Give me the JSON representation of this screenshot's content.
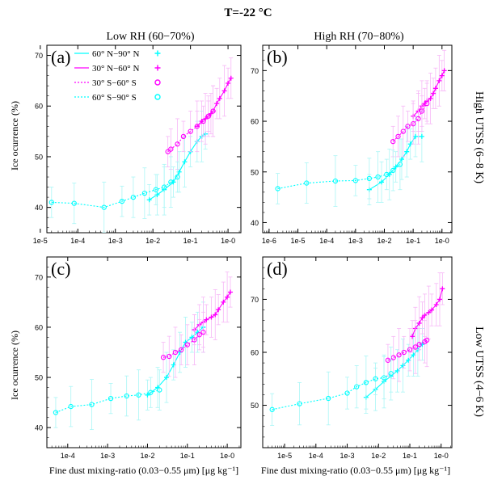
{
  "figure": {
    "title": "T=-22 °C",
    "col_titles": [
      "Low RH (60−70%)",
      "High RH (70−80%)"
    ],
    "row_labels": [
      "High UTSS (6−8 K)",
      "Low UTSS (4−6 K)"
    ],
    "ylabel": "Ice ocurrence (%)",
    "xlabel": "Fine dust mixing-ratio (0.03−0.55 μm) [μg kg⁻¹]",
    "legend": [
      {
        "label": "60° N−90° N",
        "color": "#00ffff",
        "dash": "solid",
        "marker": "+"
      },
      {
        "label": "30° N−60° N",
        "color": "#ff00ff",
        "dash": "solid",
        "marker": "+"
      },
      {
        "label": "30° S−60° S",
        "color": "#ff00ff",
        "dash": "dotted",
        "marker": "o"
      },
      {
        "label": "60° S−90° S",
        "color": "#00ffff",
        "dash": "dotted",
        "marker": "o"
      }
    ]
  },
  "chart_data": [
    {
      "type": "line",
      "panel": "(a)",
      "xscale": "log",
      "xlim": [
        1.5e-05,
        2.2
      ],
      "ylim": [
        35,
        72
      ],
      "xticks": [
        1e-05,
        0.0001,
        0.001,
        0.01,
        0.1,
        1
      ],
      "xtick_labels": [
        "1e-5",
        "1e-4",
        "1e-3",
        "1e-2",
        "1e-1",
        "1e-0"
      ],
      "yticks": [
        40,
        50,
        60,
        70
      ],
      "series": [
        {
          "name": "60° N−90° N",
          "color": "#00ffff",
          "marker": "+",
          "dash": "solid",
          "x": [
            0.008,
            0.013,
            0.02,
            0.035,
            0.05,
            0.07,
            0.1,
            0.15,
            0.2,
            0.25
          ],
          "y": [
            41.5,
            42.5,
            43.5,
            45,
            47,
            49,
            51,
            53,
            54,
            54.5
          ]
        },
        {
          "name": "30° N−60° N",
          "color": "#ff00ff",
          "marker": "+",
          "dash": "solid",
          "x": [
            0.15,
            0.2,
            0.25,
            0.3,
            0.35,
            0.4,
            0.5,
            0.6,
            0.8,
            1.0,
            1.2
          ],
          "y": [
            56,
            57,
            57.5,
            58,
            58.5,
            59,
            60.5,
            61.5,
            63,
            64.5,
            65.5
          ]
        },
        {
          "name": "30° S−60° S",
          "color": "#ff00ff",
          "marker": "o",
          "dash": "dotted",
          "x": [
            0.025,
            0.03,
            0.045,
            0.065,
            0.1,
            0.15,
            0.22,
            0.3,
            0.4
          ],
          "y": [
            51,
            51.5,
            52.5,
            54,
            55,
            56,
            57,
            58,
            59
          ]
        },
        {
          "name": "60° S−90° S",
          "color": "#00ffff",
          "marker": "o",
          "dash": "dotted",
          "x": [
            2e-05,
            8e-05,
            0.0005,
            0.0015,
            0.003,
            0.006,
            0.012,
            0.02,
            0.03,
            0.045
          ],
          "y": [
            41,
            40.8,
            40,
            41.2,
            42,
            42.8,
            43.5,
            44,
            45,
            46
          ]
        }
      ]
    },
    {
      "type": "line",
      "panel": "(b)",
      "xscale": "log",
      "xlim": [
        6e-07,
        2.2
      ],
      "ylim": [
        38,
        75
      ],
      "xticks": [
        1e-06,
        1e-05,
        0.0001,
        0.001,
        0.01,
        0.1,
        1
      ],
      "xtick_labels": [
        "1e-6",
        "1e-5",
        "1e-4",
        "1e-3",
        "1e-2",
        "1e-1",
        "1e-0"
      ],
      "yticks": [
        40,
        50,
        60,
        70
      ],
      "series": [
        {
          "name": "60° N−90° N",
          "color": "#00ffff",
          "marker": "+",
          "dash": "solid",
          "x": [
            0.003,
            0.008,
            0.015,
            0.025,
            0.04,
            0.06,
            0.08,
            0.12,
            0.2
          ],
          "y": [
            46.5,
            48,
            49.5,
            51,
            52.5,
            54,
            55.5,
            57,
            57
          ]
        },
        {
          "name": "30° N−60° N",
          "color": "#ff00ff",
          "marker": "+",
          "dash": "solid",
          "x": [
            0.1,
            0.15,
            0.2,
            0.25,
            0.3,
            0.4,
            0.5,
            0.6,
            0.8,
            1.0,
            1.2
          ],
          "y": [
            61,
            62,
            63,
            63.5,
            64,
            64.5,
            65.5,
            66.5,
            68,
            69,
            70
          ]
        },
        {
          "name": "30° S−60° S",
          "color": "#ff00ff",
          "marker": "o",
          "dash": "dotted",
          "x": [
            0.02,
            0.03,
            0.045,
            0.065,
            0.1,
            0.15,
            0.2,
            0.3
          ],
          "y": [
            56,
            57,
            58,
            59,
            59.5,
            60.5,
            62,
            63.5
          ]
        },
        {
          "name": "60° S−90° S",
          "color": "#00ffff",
          "marker": "o",
          "dash": "dotted",
          "x": [
            2e-06,
            2e-05,
            0.0002,
            0.001,
            0.003,
            0.006,
            0.012,
            0.02,
            0.035
          ],
          "y": [
            46.7,
            47.8,
            48.2,
            48.3,
            48.7,
            49,
            49.5,
            50.3,
            51.5
          ]
        }
      ]
    },
    {
      "type": "line",
      "panel": "(c)",
      "xscale": "log",
      "xlim": [
        3e-05,
        2.2
      ],
      "ylim": [
        36,
        74
      ],
      "xticks": [
        0.0001,
        0.001,
        0.01,
        0.1,
        1
      ],
      "xtick_labels": [
        "1e-4",
        "1e-3",
        "1e-2",
        "1e-1",
        "1e-0"
      ],
      "yticks": [
        40,
        50,
        60,
        70
      ],
      "series": [
        {
          "name": "60° N−90° N",
          "color": "#00ffff",
          "marker": "+",
          "dash": "solid",
          "x": [
            0.01,
            0.018,
            0.03,
            0.045,
            0.065,
            0.09,
            0.13,
            0.18,
            0.25
          ],
          "y": [
            46.5,
            48,
            50,
            52.5,
            55,
            57,
            58,
            59,
            60
          ]
        },
        {
          "name": "30° N−60° N",
          "color": "#ff00ff",
          "marker": "+",
          "dash": "solid",
          "x": [
            0.15,
            0.2,
            0.25,
            0.3,
            0.4,
            0.5,
            0.6,
            0.8,
            1.0,
            1.2
          ],
          "y": [
            59.5,
            60.5,
            61,
            61.5,
            62,
            62.5,
            63.5,
            65,
            66,
            67
          ]
        },
        {
          "name": "30° S−60° S",
          "color": "#ff00ff",
          "marker": "o",
          "dash": "dotted",
          "x": [
            0.025,
            0.035,
            0.05,
            0.07,
            0.1,
            0.15,
            0.2,
            0.25
          ],
          "y": [
            54,
            54.2,
            55,
            55.5,
            56.5,
            57.5,
            58.5,
            59
          ]
        },
        {
          "name": "60° S−90° S",
          "color": "#00ffff",
          "marker": "o",
          "dash": "dotted",
          "x": [
            5e-05,
            0.00012,
            0.0004,
            0.0012,
            0.003,
            0.006,
            0.012,
            0.02
          ],
          "y": [
            43,
            44.2,
            44.6,
            45.8,
            46.3,
            46.5,
            47,
            47.5
          ]
        }
      ]
    },
    {
      "type": "line",
      "panel": "(d)",
      "xscale": "log",
      "xlim": [
        2e-06,
        2.2
      ],
      "ylim": [
        42,
        78
      ],
      "xticks": [
        1e-05,
        0.0001,
        0.001,
        0.01,
        0.1,
        1
      ],
      "xtick_labels": [
        "1e-5",
        "1e-4",
        "1e-3",
        "1e-2",
        "1e-1",
        "1e-0"
      ],
      "yticks": [
        50,
        60,
        70
      ],
      "series": [
        {
          "name": "60° N−90° N",
          "color": "#00ffff",
          "marker": "+",
          "dash": "solid",
          "x": [
            0.004,
            0.008,
            0.015,
            0.025,
            0.04,
            0.06,
            0.09,
            0.13,
            0.18,
            0.25
          ],
          "y": [
            51.5,
            53,
            54.5,
            55.5,
            56.5,
            57.5,
            58.5,
            59.5,
            60.5,
            61.5
          ]
        },
        {
          "name": "30° N−60° N",
          "color": "#ff00ff",
          "marker": "+",
          "dash": "solid",
          "x": [
            0.12,
            0.15,
            0.2,
            0.25,
            0.3,
            0.4,
            0.5,
            0.7,
            0.9,
            1.1
          ],
          "y": [
            63,
            64.5,
            65.5,
            66.5,
            67,
            67.5,
            68,
            69,
            70,
            72
          ]
        },
        {
          "name": "30° S−60° S",
          "color": "#ff00ff",
          "marker": "o",
          "dash": "dotted",
          "x": [
            0.02,
            0.03,
            0.045,
            0.065,
            0.1,
            0.15,
            0.2,
            0.3,
            0.35
          ],
          "y": [
            58.5,
            59,
            59.5,
            60,
            60.5,
            61,
            61.5,
            62,
            62.3
          ]
        },
        {
          "name": "60° S−90° S",
          "color": "#00ffff",
          "marker": "o",
          "dash": "dotted",
          "x": [
            4e-06,
            3e-05,
            0.00025,
            0.001,
            0.002,
            0.004,
            0.008,
            0.015,
            0.025
          ],
          "y": [
            49.2,
            50.3,
            51.3,
            52.3,
            53.5,
            54.3,
            55,
            55.2,
            56
          ]
        }
      ]
    }
  ]
}
